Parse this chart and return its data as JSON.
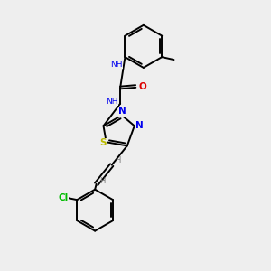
{
  "background_color": "#eeeeee",
  "bond_color": "#000000",
  "atom_colors": {
    "N": "#0000ee",
    "O": "#dd0000",
    "S": "#bbbb00",
    "Cl": "#00bb00",
    "H": "#777777"
  },
  "figsize": [
    3.0,
    3.0
  ],
  "dpi": 100,
  "xlim": [
    0,
    10
  ],
  "ylim": [
    0,
    10
  ]
}
